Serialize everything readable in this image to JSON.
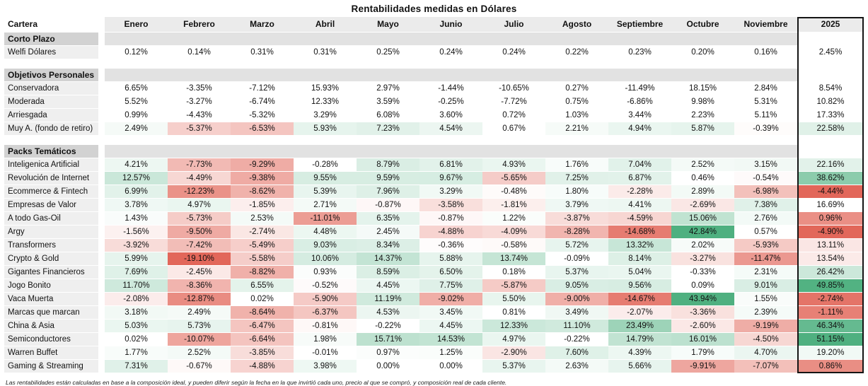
{
  "title": "Rentabilidades medidas en Dólares",
  "footnote": "Las rentabilidades están calculadas en base a la composición ideal, y pueden diferir según la fecha en la que invirtió cada uno, precio al que se compró, y composición real de cada cliente.",
  "heatmap": {
    "positive_color": "#4fb080",
    "negative_color": "#e2675a",
    "month_pos_max": 42,
    "month_neg_max": 17,
    "year_center": 16.5,
    "year_pos_span": 34,
    "year_neg_span": 21
  },
  "ui_colors": {
    "header_bg": "#ebebeb",
    "row_label_bg": "#efefef",
    "section_label_bg": "#d2d2d2",
    "section_band_bg": "#e2e2e2",
    "year_outline": "#151515"
  },
  "chart_data": {
    "type": "heatmap",
    "title": "Rentabilidades medidas en Dólares",
    "value_unit": "%",
    "columns": [
      "Cartera",
      "Enero",
      "Febrero",
      "Marzo",
      "Abril",
      "Mayo",
      "Junio",
      "Julio",
      "Agosto",
      "Septiembre",
      "Octubre",
      "Noviembre",
      "2025"
    ],
    "sections": [
      {
        "label": "Corto Plazo",
        "rows": [
          {
            "label": "Welfi Dólares",
            "heatmap": false,
            "values": [
              0.12,
              0.14,
              0.31,
              0.31,
              0.25,
              0.24,
              0.24,
              0.22,
              0.23,
              0.2,
              0.16,
              2.45
            ]
          }
        ]
      },
      {
        "label": "Objetivos Personales",
        "rows": [
          {
            "label": "Conservadora",
            "heatmap": false,
            "values": [
              6.65,
              -3.35,
              -7.12,
              15.93,
              2.97,
              -1.44,
              -10.65,
              0.27,
              -11.49,
              18.15,
              2.84,
              8.54
            ]
          },
          {
            "label": "Moderada",
            "heatmap": false,
            "values": [
              5.52,
              -3.27,
              -6.74,
              12.33,
              3.59,
              -0.25,
              -7.72,
              0.75,
              -6.86,
              9.98,
              5.31,
              10.82
            ]
          },
          {
            "label": "Arriesgada",
            "heatmap": false,
            "values": [
              0.99,
              -4.43,
              -5.32,
              3.29,
              6.08,
              3.6,
              0.72,
              1.03,
              3.44,
              2.23,
              5.11,
              17.33
            ]
          },
          {
            "label": "Muy A. (fondo de retiro)",
            "heatmap": true,
            "values": [
              2.49,
              -5.37,
              -6.53,
              5.93,
              7.23,
              4.54,
              0.67,
              2.21,
              4.94,
              5.87,
              -0.39,
              22.58
            ]
          }
        ]
      },
      {
        "label": "Packs Temáticos",
        "rows": [
          {
            "label": "Inteligenica Artificial",
            "heatmap": true,
            "values": [
              4.21,
              -7.73,
              -9.29,
              -0.28,
              8.79,
              6.81,
              4.93,
              1.76,
              7.04,
              2.52,
              3.15,
              22.16
            ]
          },
          {
            "label": "Revolución de Internet",
            "heatmap": true,
            "values": [
              12.57,
              -4.49,
              -9.38,
              9.55,
              9.59,
              9.67,
              -5.65,
              7.25,
              6.87,
              0.46,
              -0.54,
              38.62
            ]
          },
          {
            "label": "Ecommerce & Fintech",
            "heatmap": true,
            "values": [
              6.99,
              -12.23,
              -8.62,
              5.39,
              7.96,
              3.29,
              -0.48,
              1.8,
              -2.28,
              2.89,
              -6.98,
              -4.44
            ]
          },
          {
            "label": "Empresas de Valor",
            "heatmap": true,
            "values": [
              3.78,
              4.97,
              -1.85,
              2.71,
              -0.87,
              -3.58,
              -1.81,
              3.79,
              4.41,
              -2.69,
              7.38,
              16.69
            ]
          },
          {
            "label": "A todo Gas-Oil",
            "heatmap": true,
            "values": [
              1.43,
              -5.73,
              2.53,
              -11.01,
              6.35,
              -0.87,
              1.22,
              -3.87,
              -4.59,
              15.06,
              2.76,
              0.96
            ]
          },
          {
            "label": "Argy",
            "heatmap": true,
            "values": [
              -1.56,
              -9.5,
              -2.74,
              4.48,
              2.45,
              -4.88,
              -4.09,
              -8.28,
              -14.68,
              42.84,
              0.57,
              -4.9
            ]
          },
          {
            "label": "Transformers",
            "heatmap": true,
            "values": [
              -3.92,
              -7.42,
              -5.49,
              9.03,
              8.34,
              -0.36,
              -0.58,
              5.72,
              13.32,
              2.02,
              -5.93,
              13.11
            ]
          },
          {
            "label": "Crypto & Gold",
            "heatmap": true,
            "values": [
              5.99,
              -19.1,
              -5.58,
              10.06,
              14.37,
              5.88,
              13.74,
              -0.09,
              8.14,
              -3.27,
              -11.47,
              13.54
            ]
          },
          {
            "label": "Gigantes Financieros",
            "heatmap": true,
            "values": [
              7.69,
              -2.45,
              -8.82,
              0.93,
              8.59,
              6.5,
              0.18,
              5.37,
              5.04,
              -0.33,
              2.31,
              26.42
            ]
          },
          {
            "label": "Jogo Bonito",
            "heatmap": true,
            "values": [
              11.7,
              -8.36,
              6.55,
              -0.52,
              4.45,
              7.75,
              -5.87,
              9.05,
              9.56,
              0.09,
              9.01,
              49.85
            ]
          },
          {
            "label": "Vaca Muerta",
            "heatmap": true,
            "values": [
              -2.08,
              -12.87,
              0.02,
              -5.9,
              11.19,
              -9.02,
              5.5,
              -9.0,
              -14.67,
              43.94,
              1.55,
              -2.74
            ]
          },
          {
            "label": "Marcas que marcan",
            "heatmap": true,
            "values": [
              3.18,
              2.49,
              -8.64,
              -6.37,
              4.53,
              3.45,
              0.81,
              3.49,
              -2.07,
              -3.36,
              2.39,
              -1.11
            ]
          },
          {
            "label": "China & Asia",
            "heatmap": true,
            "values": [
              5.03,
              5.73,
              -6.47,
              -0.81,
              -0.22,
              4.45,
              12.33,
              11.1,
              23.49,
              -2.6,
              -9.19,
              46.34
            ]
          },
          {
            "label": "Semiconductores",
            "heatmap": true,
            "values": [
              0.02,
              -10.07,
              -6.64,
              1.98,
              15.71,
              14.53,
              4.97,
              -0.22,
              14.79,
              16.01,
              -4.5,
              51.15
            ]
          },
          {
            "label": "Warren Buffet",
            "heatmap": true,
            "values": [
              1.77,
              2.52,
              -3.85,
              -0.01,
              0.97,
              1.25,
              -2.9,
              7.6,
              4.39,
              1.79,
              4.7,
              19.2
            ]
          },
          {
            "label": "Gaming & Streaming",
            "heatmap": true,
            "values": [
              7.31,
              -0.67,
              -4.88,
              3.98,
              0.0,
              0.0,
              5.37,
              2.63,
              5.66,
              -9.91,
              -7.07,
              0.86
            ]
          }
        ]
      }
    ]
  }
}
